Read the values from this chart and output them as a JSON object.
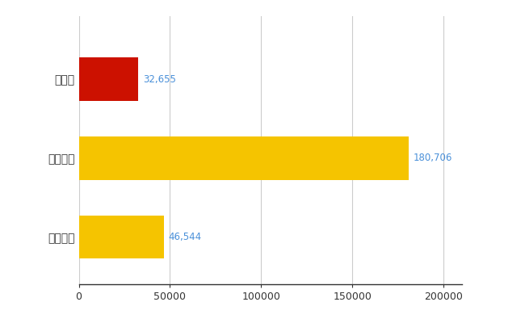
{
  "categories": [
    "青森県",
    "全国最大",
    "全国平均"
  ],
  "values": [
    32655,
    180706,
    46544
  ],
  "labels": [
    "32,655",
    "180,706",
    "46,544"
  ],
  "bar_colors": [
    "#cc1100",
    "#f5c400",
    "#f5c400"
  ],
  "background_color": "#ffffff",
  "xlim": [
    0,
    210000
  ],
  "xticks": [
    0,
    50000,
    100000,
    150000,
    200000
  ],
  "xtick_labels": [
    "0",
    "50000",
    "100000",
    "150000",
    "200000"
  ],
  "grid_color": "#cccccc",
  "label_color": "#4a90d9",
  "bar_height": 0.55,
  "figsize": [
    6.5,
    4.0
  ],
  "dpi": 100
}
